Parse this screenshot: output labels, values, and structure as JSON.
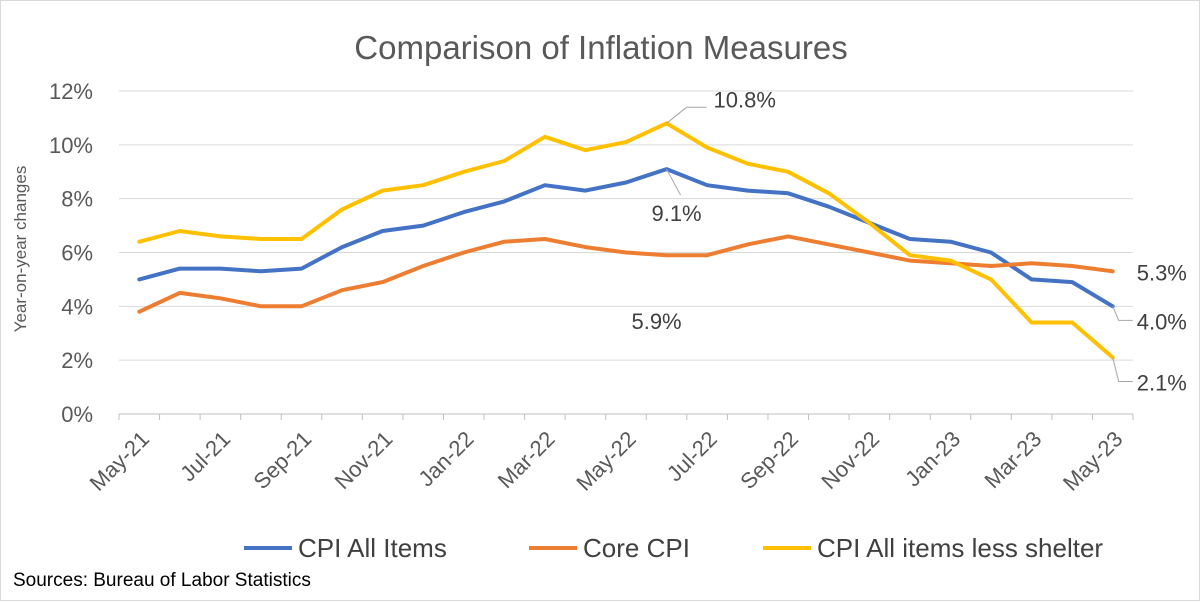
{
  "chart_data": {
    "type": "line",
    "title": "Comparison of Inflation Measures",
    "xlabel": "",
    "ylabel": "Year-on-year changes",
    "ylim": [
      0,
      12
    ],
    "yticks": [
      "0%",
      "2%",
      "4%",
      "6%",
      "8%",
      "10%",
      "12%"
    ],
    "ytick_values": [
      0,
      2,
      4,
      6,
      8,
      10,
      12
    ],
    "categories": [
      "May-21",
      "Jun-21",
      "Jul-21",
      "Aug-21",
      "Sep-21",
      "Oct-21",
      "Nov-21",
      "Dec-21",
      "Jan-22",
      "Feb-22",
      "Mar-22",
      "Apr-22",
      "May-22",
      "Jun-22",
      "Jul-22",
      "Aug-22",
      "Sep-22",
      "Oct-22",
      "Nov-22",
      "Dec-22",
      "Jan-23",
      "Feb-23",
      "Mar-23",
      "Apr-23",
      "May-23"
    ],
    "xtick_labels": [
      "May-21",
      "Jul-21",
      "Sep-21",
      "Nov-21",
      "Jan-22",
      "Mar-22",
      "May-22",
      "Jul-22",
      "Sep-22",
      "Nov-22",
      "Jan-23",
      "Mar-23",
      "May-23"
    ],
    "grid": true,
    "legend_position": "bottom",
    "series": [
      {
        "name": "CPI All Items",
        "color": "#4472c4",
        "values": [
          5.0,
          5.4,
          5.4,
          5.3,
          5.4,
          6.2,
          6.8,
          7.0,
          7.5,
          7.9,
          8.5,
          8.3,
          8.6,
          9.1,
          8.5,
          8.3,
          8.2,
          7.7,
          7.1,
          6.5,
          6.4,
          6.0,
          5.0,
          4.9,
          4.0
        ]
      },
      {
        "name": "Core CPI",
        "color": "#ed7d31",
        "values": [
          3.8,
          4.5,
          4.3,
          4.0,
          4.0,
          4.6,
          4.9,
          5.5,
          6.0,
          6.4,
          6.5,
          6.2,
          6.0,
          5.9,
          5.9,
          6.3,
          6.6,
          6.3,
          6.0,
          5.7,
          5.6,
          5.5,
          5.6,
          5.5,
          5.3
        ]
      },
      {
        "name": "CPI All items less shelter",
        "color": "#ffc000",
        "values": [
          6.4,
          6.8,
          6.6,
          6.5,
          6.5,
          7.6,
          8.3,
          8.5,
          9.0,
          9.4,
          10.3,
          9.8,
          10.1,
          10.8,
          9.9,
          9.3,
          9.0,
          8.2,
          7.1,
          5.9,
          5.7,
          5.0,
          3.4,
          3.4,
          2.1
        ]
      }
    ],
    "annotations": [
      {
        "text": "10.8%",
        "series": "CPI All items less shelter",
        "category": "Jun-22",
        "value": 10.8
      },
      {
        "text": "9.1%",
        "series": "CPI All Items",
        "category": "Jun-22",
        "value": 9.1
      },
      {
        "text": "5.9%",
        "series": "Core CPI",
        "category": "Jun-22",
        "value": 5.9
      },
      {
        "text": "5.3%",
        "series": "Core CPI",
        "category": "May-23",
        "value": 5.3
      },
      {
        "text": "4.0%",
        "series": "CPI All Items",
        "category": "May-23",
        "value": 4.0
      },
      {
        "text": "2.1%",
        "series": "CPI All items less shelter",
        "category": "May-23",
        "value": 2.1
      }
    ],
    "source": "Sources: Bureau of Labor Statistics"
  }
}
